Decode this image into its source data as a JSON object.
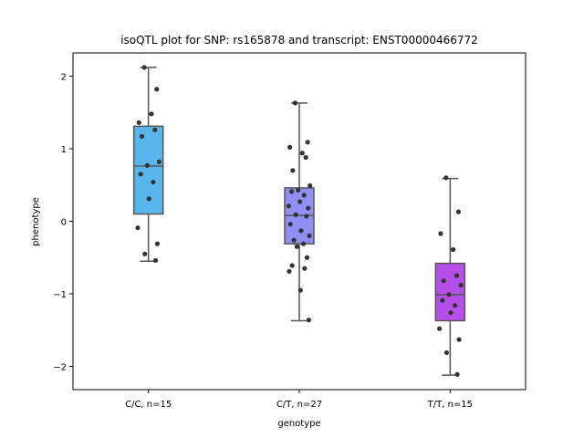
{
  "chart_data": {
    "type": "box",
    "title": "isoQTL plot for SNP: rs165878 and transcript: ENST00000466772",
    "xlabel": "genotype",
    "ylabel": "phenotype",
    "categories": [
      "C/C, n=15",
      "C/T, n=27",
      "T/T, n=15"
    ],
    "ylim": [
      -2.32,
      2.32
    ],
    "yticks": [
      {
        "value": 2,
        "label": "2"
      },
      {
        "value": 1,
        "label": "1"
      },
      {
        "value": 0,
        "label": "0"
      },
      {
        "value": -1,
        "label": "−1"
      },
      {
        "value": -2,
        "label": "−2"
      }
    ],
    "boxes": [
      {
        "category": "C/C, n=15",
        "color": "#58b6ec",
        "whisker_low": -0.55,
        "q1": 0.1,
        "median": 0.76,
        "q3": 1.31,
        "whisker_high": 2.12
      },
      {
        "category": "C/T, n=27",
        "color": "#8f8ff6",
        "whisker_low": -1.37,
        "q1": -0.31,
        "median": 0.08,
        "q3": 0.46,
        "whisker_high": 1.63
      },
      {
        "category": "T/T, n=15",
        "color": "#b64ee9",
        "whisker_low": -2.12,
        "q1": -1.37,
        "median": -1.01,
        "q3": -0.58,
        "whisker_high": 0.59
      }
    ],
    "points": [
      {
        "category": "C/C, n=15",
        "values": [
          2.12,
          1.82,
          1.36,
          1.48,
          1.26,
          1.17,
          0.82,
          0.77,
          0.65,
          0.54,
          0.31,
          -0.09,
          -0.31,
          -0.45,
          -0.54
        ]
      },
      {
        "category": "C/T, n=27",
        "values": [
          1.63,
          1.09,
          1.02,
          0.94,
          0.88,
          0.7,
          0.49,
          0.43,
          0.41,
          0.36,
          0.27,
          0.21,
          0.18,
          0.09,
          0.07,
          -0.04,
          -0.13,
          -0.2,
          -0.26,
          -0.31,
          -0.35,
          -0.5,
          -0.61,
          -0.65,
          -0.69,
          -0.95,
          -1.36
        ]
      },
      {
        "category": "T/T, n=15",
        "values": [
          0.6,
          0.13,
          -0.17,
          -0.39,
          -0.75,
          -0.82,
          -0.88,
          -1.01,
          -1.09,
          -1.16,
          -1.26,
          -1.48,
          -1.63,
          -1.81,
          -2.11
        ]
      }
    ],
    "colors": {
      "whisker": "#555555",
      "point": "#333333",
      "axis": "#000000"
    },
    "grid": false,
    "legend": "none"
  }
}
